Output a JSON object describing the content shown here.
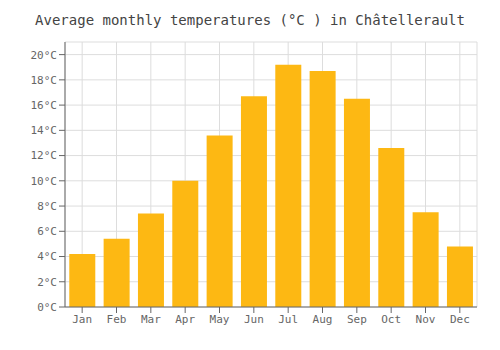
{
  "chart_data": {
    "type": "bar",
    "title": "Average monthly temperatures (°C ) in Châtellerault",
    "categories": [
      "Jan",
      "Feb",
      "Mar",
      "Apr",
      "May",
      "Jun",
      "Jul",
      "Aug",
      "Sep",
      "Oct",
      "Nov",
      "Dec"
    ],
    "values": [
      4.2,
      5.4,
      7.4,
      10.0,
      13.6,
      16.7,
      19.2,
      18.7,
      16.5,
      12.6,
      7.5,
      4.8
    ],
    "color": "#FDB813",
    "ylim": [
      0,
      21
    ],
    "yticks": [
      {
        "value": 0,
        "label": "0°C"
      },
      {
        "value": 2,
        "label": "2°C"
      },
      {
        "value": 4,
        "label": "4°C"
      },
      {
        "value": 6,
        "label": "6°C"
      },
      {
        "value": 8,
        "label": "8°C"
      },
      {
        "value": 10,
        "label": "10°C"
      },
      {
        "value": 12,
        "label": "12°C"
      },
      {
        "value": 14,
        "label": "14°C"
      },
      {
        "value": 16,
        "label": "16°C"
      },
      {
        "value": 18,
        "label": "18°C"
      },
      {
        "value": 20,
        "label": "20°C"
      }
    ],
    "grid": true
  }
}
